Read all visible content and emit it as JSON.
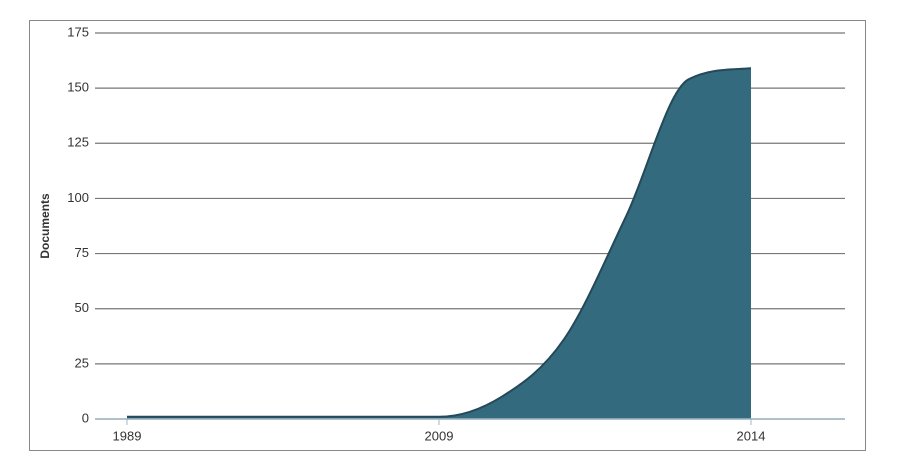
{
  "chart_data": {
    "type": "area",
    "y_label": "Documents",
    "categories": [
      "1989",
      null,
      null,
      null,
      null,
      "2009",
      null,
      null,
      null,
      null,
      "2014"
    ],
    "series": [
      {
        "color": "#336a7d",
        "values": [
          1,
          1,
          1,
          1,
          1,
          1,
          10,
          36,
          92,
          154,
          159
        ]
      }
    ],
    "ylim": [
      0,
      175
    ],
    "yticks": [
      0,
      25,
      50,
      75,
      100,
      125,
      150,
      175
    ],
    "grid": true
  }
}
